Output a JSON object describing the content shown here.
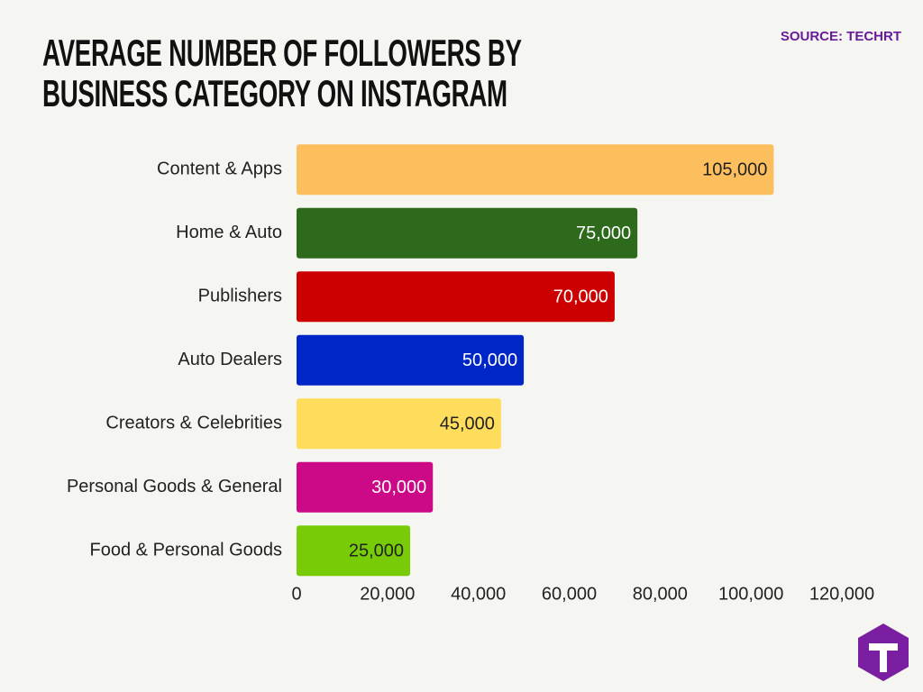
{
  "chart_data": {
    "type": "hbar",
    "title": "AVERAGE NUMBER OF FOLLOWERS BY BUSINESS CATEGORY ON INSTAGRAM",
    "source": "SOURCE: TECHRT",
    "categories": [
      "Content & Apps",
      "Home & Auto",
      "Publishers",
      "Auto Dealers",
      "Creators & Celebrities",
      "Personal Goods & General",
      "Food & Personal Goods"
    ],
    "values": [
      105000,
      75000,
      70000,
      50000,
      45000,
      30000,
      25000
    ],
    "value_labels": [
      "105,000",
      "75,000",
      "70,000",
      "50,000",
      "45,000",
      "30,000",
      "25,000"
    ],
    "colors": [
      "#fdbf5d",
      "#2d6a1b",
      "#cc0000",
      "#0026c8",
      "#ffdd5c",
      "#cc0a87",
      "#77cc07"
    ],
    "xlim": [
      0,
      120000
    ],
    "xticks": [
      0,
      {
        "value": 20000,
        "label": "20,000"
      },
      {
        "value": 40000,
        "label": "40,000"
      },
      {
        "value": 60000,
        "label": "60,000"
      },
      {
        "value": 80000,
        "label": "80,000"
      },
      {
        "value": 100000,
        "label": "100,000"
      },
      {
        "value": 120000,
        "label": "120,000"
      }
    ],
    "grid": false
  }
}
